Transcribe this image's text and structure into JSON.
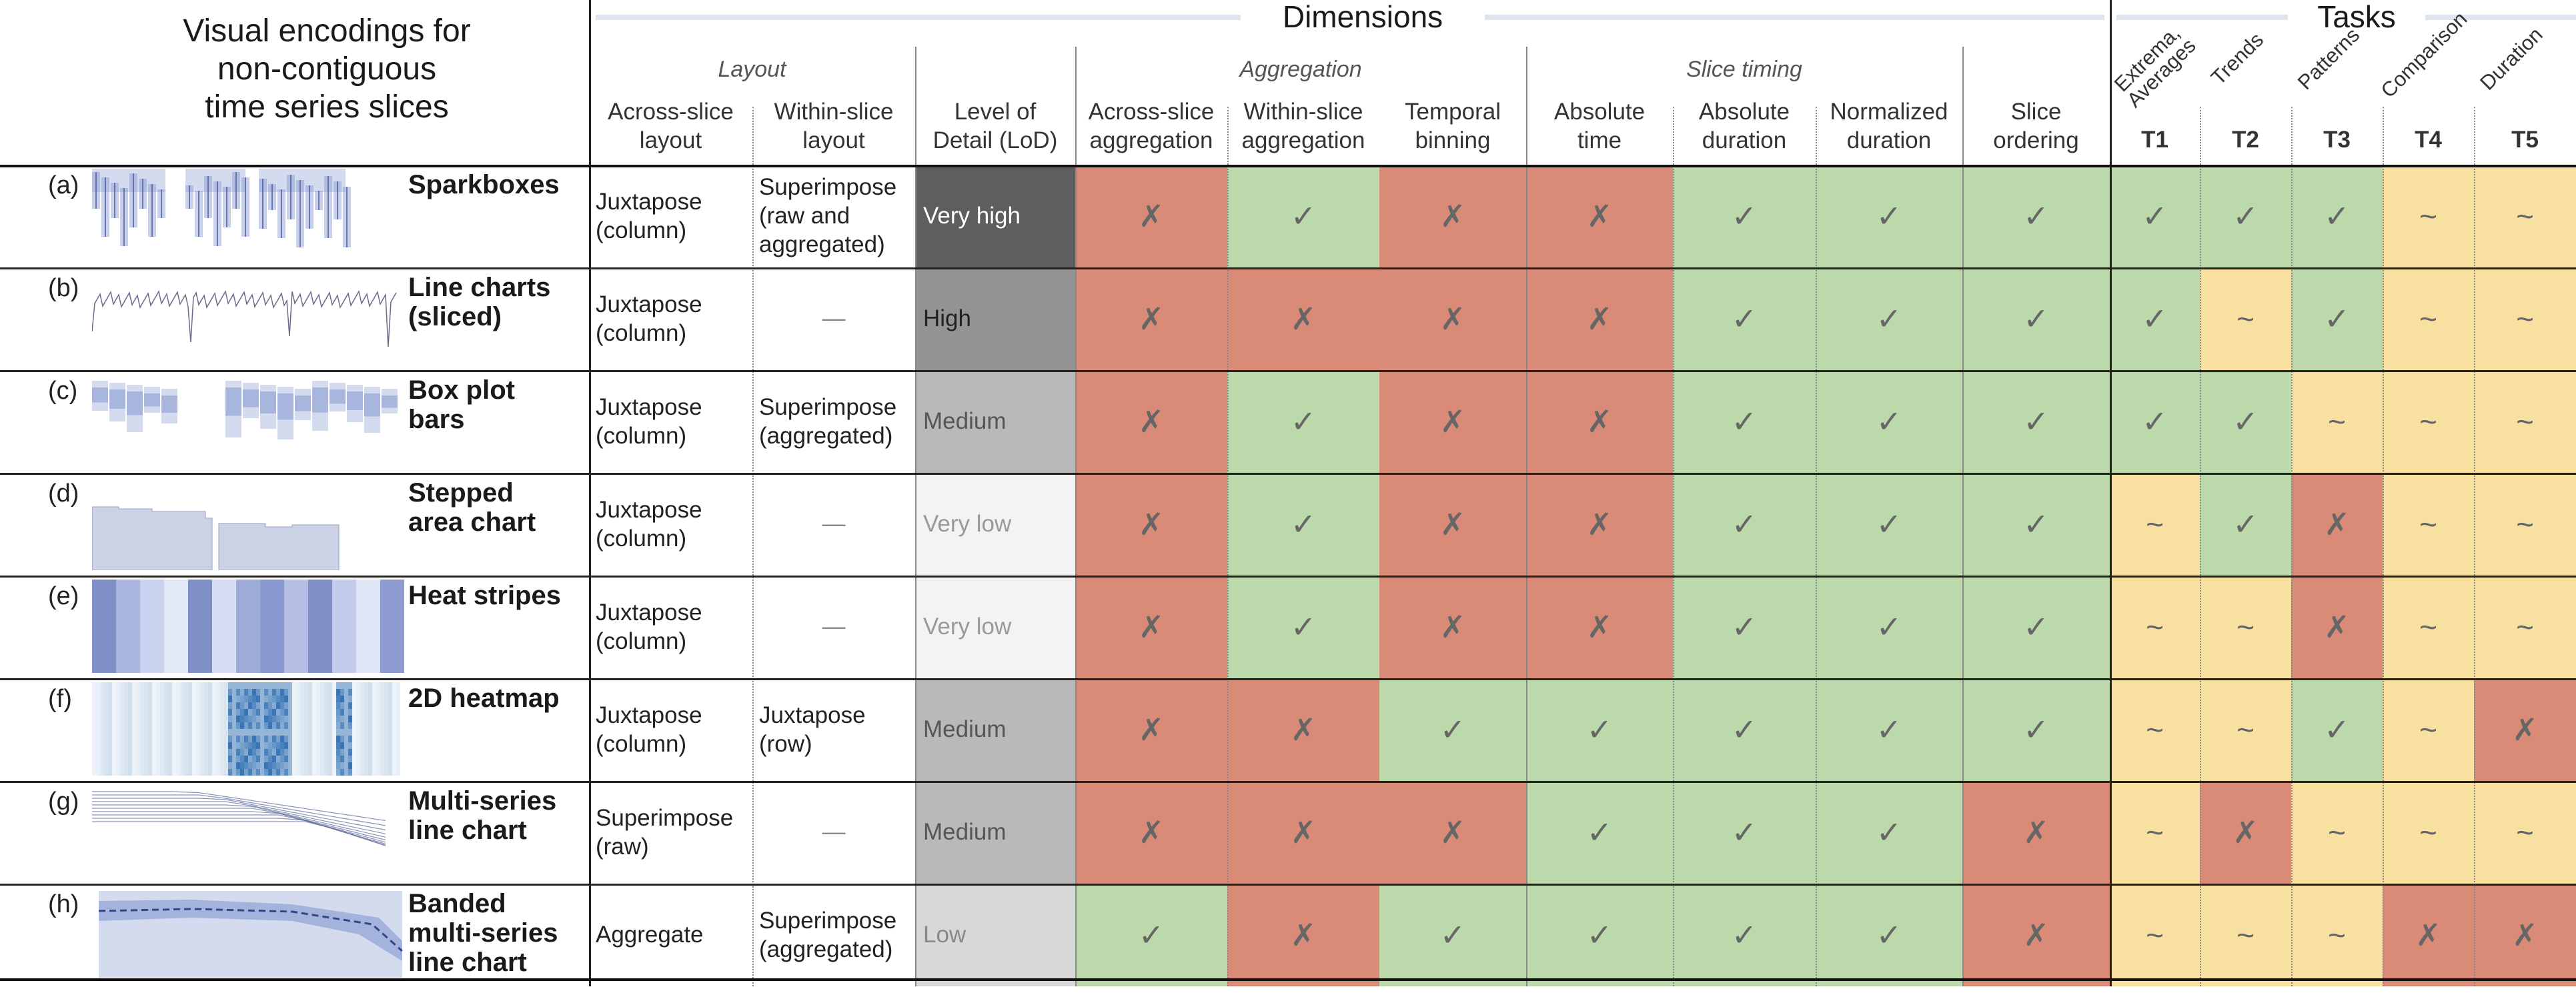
{
  "title": "Visual encodings for\nnon-contiguous\ntime series slices",
  "dimensions_title": "Dimensions",
  "tasks_title": "Tasks",
  "groups": {
    "layout": "Layout",
    "aggregation": "Aggregation",
    "slice_timing": "Slice timing"
  },
  "columns": [
    "Across-slice\nlayout",
    "Within-slice\nlayout",
    "Level of\nDetail (LoD)",
    "Across-slice\naggregation",
    "Within-slice\naggregation",
    "Temporal\nbinning",
    "Absolute\ntime",
    "Absolute\nduration",
    "Normalized\nduration",
    "Slice\nordering"
  ],
  "tasks": [
    {
      "name": "Extrema,\nAverages",
      "id": "T1"
    },
    {
      "name": "Trends",
      "id": "T2"
    },
    {
      "name": "Patterns",
      "id": "T3"
    },
    {
      "name": "Comparison",
      "id": "T4"
    },
    {
      "name": "Duration",
      "id": "T5"
    }
  ],
  "symbols": {
    "yes": "✓",
    "no": "✗",
    "partial": "~"
  },
  "colors": {
    "yes": "#bcd9ab",
    "no": "#d98b78",
    "partial": "#f7e0a0",
    "preview_blue": "#8497cf"
  },
  "rows": [
    {
      "letter": "(a)",
      "name": "Sparkboxes",
      "across_layout": "Juxtapose\n(column)",
      "within_layout": "Superimpose\n(raw and\naggregated)",
      "lod": "Very high",
      "lod_level": 5,
      "dims": [
        "no",
        "yes",
        "no",
        "no",
        "yes",
        "yes",
        "yes"
      ],
      "tasks": [
        "yes",
        "yes",
        "yes",
        "partial",
        "partial"
      ]
    },
    {
      "letter": "(b)",
      "name": "Line charts\n(sliced)",
      "across_layout": "Juxtapose\n(column)",
      "within_layout": "—",
      "lod": "High",
      "lod_level": 4,
      "dims": [
        "no",
        "no",
        "no",
        "no",
        "yes",
        "yes",
        "yes"
      ],
      "tasks": [
        "yes",
        "partial",
        "yes",
        "partial",
        "partial"
      ]
    },
    {
      "letter": "(c)",
      "name": "Box plot\nbars",
      "across_layout": "Juxtapose\n(column)",
      "within_layout": "Superimpose\n(aggregated)",
      "lod": "Medium",
      "lod_level": 3,
      "dims": [
        "no",
        "yes",
        "no",
        "no",
        "yes",
        "yes",
        "yes"
      ],
      "tasks": [
        "yes",
        "yes",
        "partial",
        "partial",
        "partial"
      ]
    },
    {
      "letter": "(d)",
      "name": "Stepped\narea chart",
      "across_layout": "Juxtapose\n(column)",
      "within_layout": "—",
      "lod": "Very low",
      "lod_level": 1,
      "dims": [
        "no",
        "yes",
        "no",
        "no",
        "yes",
        "yes",
        "yes"
      ],
      "tasks": [
        "partial",
        "yes",
        "no",
        "partial",
        "partial"
      ]
    },
    {
      "letter": "(e)",
      "name": "Heat stripes",
      "across_layout": "Juxtapose\n(column)",
      "within_layout": "—",
      "lod": "Very low",
      "lod_level": 1,
      "dims": [
        "no",
        "yes",
        "no",
        "no",
        "yes",
        "yes",
        "yes"
      ],
      "tasks": [
        "partial",
        "partial",
        "no",
        "partial",
        "partial"
      ]
    },
    {
      "letter": "(f)",
      "name": "2D heatmap",
      "across_layout": "Juxtapose\n(column)",
      "within_layout": "Juxtapose\n(row)",
      "lod": "Medium",
      "lod_level": 3,
      "dims": [
        "no",
        "no",
        "yes",
        "yes",
        "yes",
        "yes",
        "yes"
      ],
      "tasks": [
        "partial",
        "partial",
        "yes",
        "partial",
        "no"
      ]
    },
    {
      "letter": "(g)",
      "name": "Multi-series\nline chart",
      "across_layout": "Superimpose\n(raw)",
      "within_layout": "—",
      "lod": "Medium",
      "lod_level": 3,
      "dims": [
        "no",
        "no",
        "no",
        "yes",
        "yes",
        "yes",
        "no"
      ],
      "tasks": [
        "partial",
        "no",
        "partial",
        "partial",
        "partial"
      ]
    },
    {
      "letter": "(h)",
      "name": "Banded\nmulti-series\nline chart",
      "across_layout": "Aggregate",
      "within_layout": "Superimpose\n(aggregated)",
      "lod": "Low",
      "lod_level": 2,
      "dims": [
        "yes",
        "no",
        "yes",
        "yes",
        "yes",
        "yes",
        "no"
      ],
      "tasks": [
        "partial",
        "partial",
        "partial",
        "no",
        "no"
      ]
    }
  ]
}
